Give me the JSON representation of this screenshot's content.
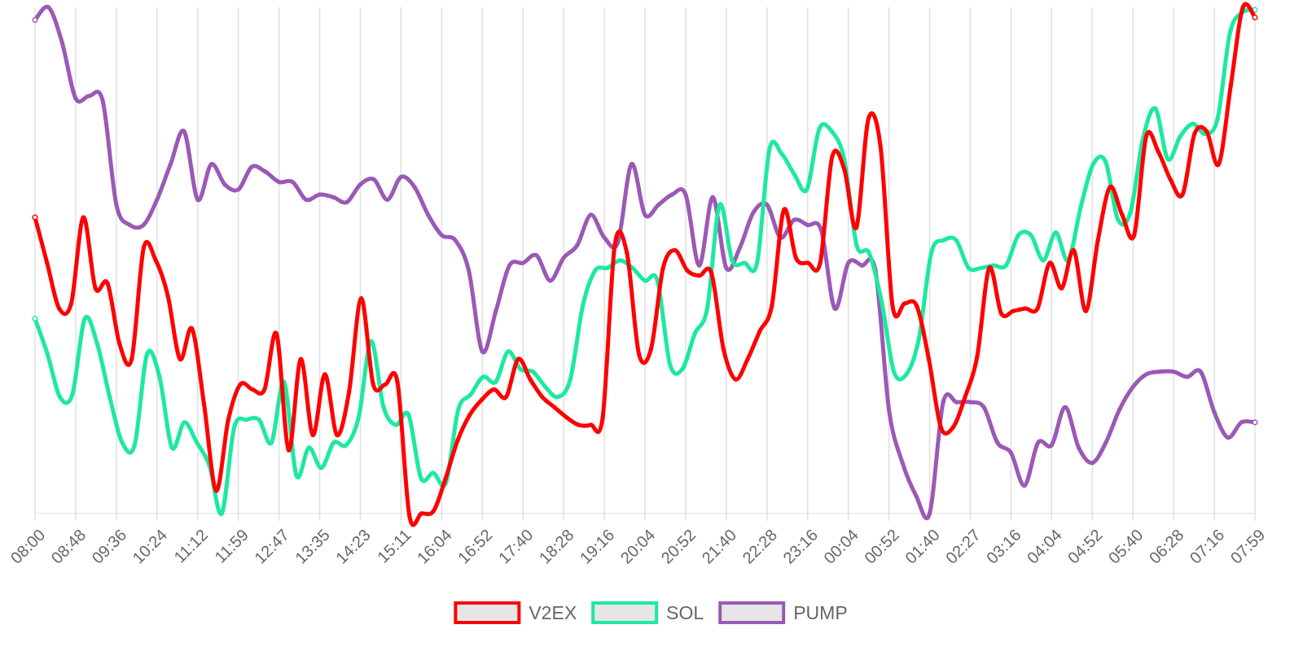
{
  "chart_data": {
    "type": "line",
    "title": "",
    "xlabel": "",
    "ylabel": "",
    "show_y_ticks": false,
    "grid": "vertical",
    "legend_position": "bottom",
    "ylim": [
      0,
      100
    ],
    "x_tick_labels": [
      "08:00",
      "08:48",
      "09:36",
      "10:24",
      "11:12",
      "11:59",
      "12:47",
      "13:35",
      "14:23",
      "15:11",
      "16:04",
      "16:52",
      "17:40",
      "18:28",
      "19:16",
      "20:04",
      "20:52",
      "21:40",
      "22:28",
      "23:16",
      "00:04",
      "00:52",
      "01:40",
      "02:27",
      "03:16",
      "04:04",
      "04:52",
      "05:40",
      "06:28",
      "07:16",
      "07:59"
    ],
    "series": [
      {
        "name": "V2EX",
        "color": "#ff0000",
        "values": [
          58.5,
          49.5,
          40.5,
          41.5,
          58.5,
          44.5,
          45.5,
          33.5,
          30.5,
          52.5,
          50,
          43,
          30.5,
          36.5,
          21.5,
          4.5,
          18.5,
          25.5,
          24.5,
          24.5,
          35.5,
          12.5,
          30.5,
          15.5,
          27.5,
          15.5,
          24,
          42.5,
          25.5,
          25.5,
          26,
          -0.5,
          0,
          0.5,
          7,
          14.5,
          19.5,
          22.5,
          24.5,
          23,
          30.5,
          26.5,
          23,
          21,
          19,
          17.5,
          17.5,
          19,
          53,
          51.5,
          31.5,
          32.5,
          48.5,
          52,
          48,
          47,
          47.5,
          32.5,
          26.5,
          30.5,
          36,
          41,
          60,
          50.5,
          49.5,
          49.5,
          70.5,
          68,
          56.5,
          78,
          72.5,
          41,
          41.5,
          41,
          30.5,
          17,
          17,
          23,
          31,
          48.5,
          39.5,
          40,
          40.5,
          40.5,
          49.5,
          44.5,
          52,
          40,
          54,
          64.5,
          59,
          55,
          74.5,
          71.5,
          66,
          63,
          75,
          75.5,
          69,
          84.5,
          100,
          98
        ],
        "y_scale": [
          0,
          100
        ]
      },
      {
        "name": "SOL",
        "color": "#1de9a0",
        "values": [
          38.5,
          31.5,
          23,
          23.5,
          38.5,
          33.5,
          23,
          14,
          13.5,
          31.5,
          27,
          13,
          18,
          14,
          9.5,
          0,
          17,
          18.5,
          18.5,
          14,
          26,
          7.5,
          13,
          9,
          14,
          13.5,
          19,
          34,
          21,
          17.5,
          19.5,
          7,
          8,
          6,
          20.5,
          23.5,
          27,
          26,
          32,
          28.5,
          28,
          25,
          23,
          26.5,
          41,
          48,
          48.5,
          50,
          48.5,
          46,
          46,
          29.5,
          28.5,
          35.5,
          40.5,
          61,
          50,
          49.5,
          49.5,
          72,
          71,
          67,
          64,
          76,
          75.5,
          70,
          53,
          51.5,
          42,
          28,
          27.5,
          34.5,
          51.5,
          54,
          54,
          48.5,
          48.5,
          49,
          49,
          55,
          55,
          50,
          55.5,
          50,
          60.5,
          69,
          69.5,
          58,
          59.5,
          74,
          80,
          70,
          74.5,
          77,
          75,
          78,
          95,
          99,
          99.5
        ],
        "y_scale": [
          0,
          100
        ]
      },
      {
        "name": "PUMP",
        "color": "#9b59b6",
        "values": [
          97.5,
          100,
          93,
          82,
          82.5,
          81.5,
          61,
          57,
          57,
          62,
          69,
          75.5,
          62,
          69,
          65,
          64,
          68.5,
          67.5,
          65.5,
          65.5,
          62,
          63,
          62.5,
          61.5,
          65,
          66,
          62,
          66.5,
          64.5,
          59,
          55,
          54,
          48,
          32,
          40,
          49,
          49.5,
          51,
          46,
          50.5,
          53,
          59,
          54.5,
          53.5,
          69,
          59,
          61,
          63,
          63,
          49,
          62.5,
          48.5,
          52.5,
          59.5,
          61,
          54.5,
          58,
          57,
          56,
          40.5,
          49.5,
          49,
          48,
          20.5,
          10,
          3.5,
          0,
          22,
          22,
          22,
          21,
          14,
          12,
          5.5,
          14,
          13.5,
          21,
          13,
          10,
          14,
          20.5,
          25,
          27.5,
          28,
          28,
          27,
          28,
          20,
          15,
          18,
          18
        ],
        "y_scale": [
          0,
          100
        ]
      }
    ]
  }
}
